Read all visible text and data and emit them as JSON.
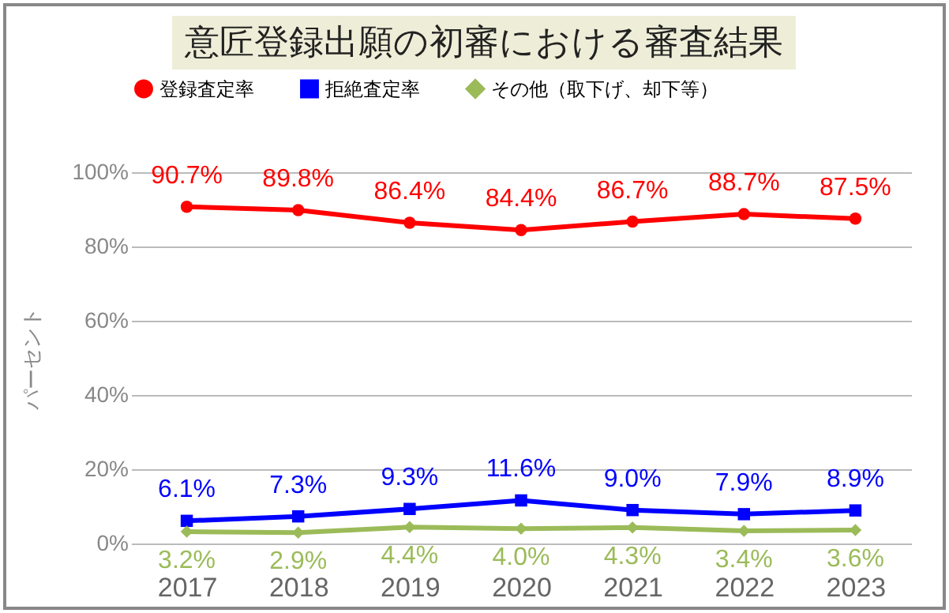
{
  "chart_data": {
    "type": "line",
    "title": "意匠登録出願の初審における審査結果",
    "ylabel": "パーセント",
    "categories": [
      "2017",
      "2018",
      "2019",
      "2020",
      "2021",
      "2022",
      "2023"
    ],
    "series": [
      {
        "name": "登録査定率",
        "color": "#ff0000",
        "marker": "circle",
        "values": [
          90.7,
          89.8,
          86.4,
          84.4,
          86.7,
          88.7,
          87.5
        ],
        "value_labels": [
          "90.7%",
          "89.8%",
          "86.4%",
          "84.4%",
          "86.7%",
          "88.7%",
          "87.5%"
        ]
      },
      {
        "name": "拒絶査定率",
        "color": "#0000ff",
        "marker": "square",
        "values": [
          6.1,
          7.3,
          9.3,
          11.6,
          9.0,
          7.9,
          8.9
        ],
        "value_labels": [
          "6.1%",
          "7.3%",
          "9.3%",
          "11.6%",
          "9.0%",
          "7.9%",
          "8.9%"
        ]
      },
      {
        "name": "その他（取下げ、却下等）",
        "color": "#9bbb59",
        "marker": "diamond",
        "values": [
          3.2,
          2.9,
          4.4,
          4.0,
          4.3,
          3.4,
          3.6
        ],
        "value_labels": [
          "3.2%",
          "2.9%",
          "4.4%",
          "4.0%",
          "4.3%",
          "3.4%",
          "3.6%"
        ]
      }
    ],
    "ylim": [
      0,
      100
    ],
    "yticks": [
      {
        "value": 0,
        "label": "0%"
      },
      {
        "value": 20,
        "label": "20%"
      },
      {
        "value": 40,
        "label": "40%"
      },
      {
        "value": 60,
        "label": "60%"
      },
      {
        "value": 80,
        "label": "80%"
      },
      {
        "value": 100,
        "label": "100%"
      }
    ],
    "grid": "y",
    "legend": "top"
  }
}
